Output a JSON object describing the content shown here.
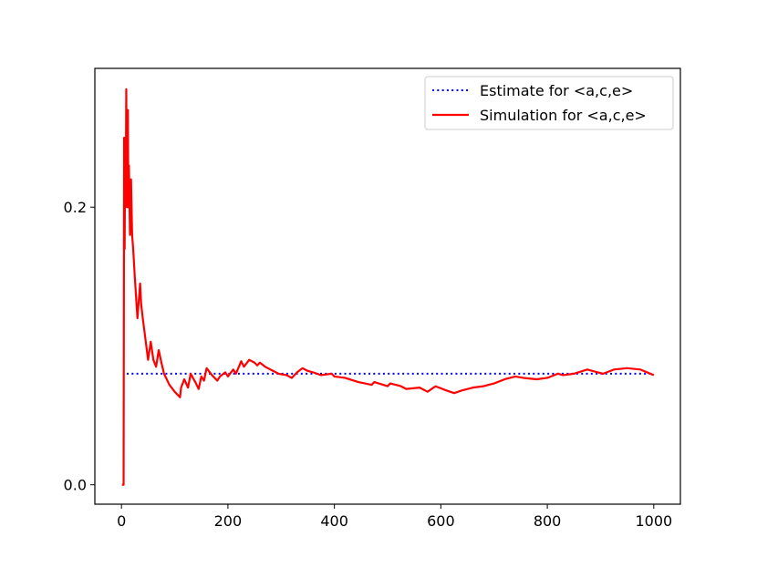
{
  "chart_data": {
    "type": "line",
    "title": "",
    "xlabel": "",
    "ylabel": "",
    "xlim": [
      -50,
      1050
    ],
    "ylim": [
      -0.014,
      0.3
    ],
    "xticks": [
      0,
      200,
      400,
      600,
      800,
      1000
    ],
    "xtick_labels": [
      "0",
      "200",
      "400",
      "600",
      "800",
      "1000"
    ],
    "yticks": [
      0.0,
      0.2
    ],
    "ytick_labels": [
      "0.0",
      "0.2"
    ],
    "grid": false,
    "legend_position": "top-right",
    "series": [
      {
        "name": "Estimate for <a,c,e>",
        "style": "dotted",
        "color": "#0000ff",
        "x": [
          10,
          1000
        ],
        "y": [
          0.08,
          0.08
        ]
      },
      {
        "name": "Simulation for <a,c,e>",
        "style": "solid",
        "color": "#ff0000",
        "x": [
          1,
          4,
          5,
          6,
          7,
          8,
          9,
          10,
          11,
          12,
          13,
          14,
          16,
          18,
          20,
          22,
          25,
          30,
          35,
          37,
          40,
          45,
          50,
          55,
          60,
          65,
          70,
          75,
          80,
          90,
          100,
          110,
          112,
          118,
          125,
          130,
          140,
          145,
          150,
          155,
          160,
          170,
          180,
          185,
          195,
          200,
          210,
          215,
          225,
          230,
          240,
          250,
          255,
          260,
          270,
          285,
          295,
          310,
          320,
          330,
          340,
          350,
          360,
          375,
          395,
          400,
          420,
          445,
          470,
          475,
          500,
          505,
          525,
          535,
          560,
          575,
          590,
          610,
          625,
          640,
          660,
          680,
          700,
          720,
          740,
          755,
          780,
          800,
          820,
          830,
          850,
          875,
          895,
          905,
          925,
          950,
          975,
          1000
        ],
        "y": [
          0.0,
          0.0,
          0.25,
          0.17,
          0.25,
          0.2,
          0.285,
          0.22,
          0.2,
          0.27,
          0.2,
          0.23,
          0.18,
          0.22,
          0.18,
          0.17,
          0.15,
          0.12,
          0.145,
          0.13,
          0.12,
          0.105,
          0.09,
          0.103,
          0.09,
          0.085,
          0.097,
          0.088,
          0.08,
          0.072,
          0.067,
          0.063,
          0.07,
          0.076,
          0.07,
          0.08,
          0.073,
          0.069,
          0.078,
          0.075,
          0.084,
          0.079,
          0.075,
          0.078,
          0.081,
          0.078,
          0.083,
          0.08,
          0.089,
          0.085,
          0.09,
          0.088,
          0.086,
          0.088,
          0.085,
          0.082,
          0.08,
          0.079,
          0.077,
          0.081,
          0.084,
          0.082,
          0.081,
          0.079,
          0.08,
          0.078,
          0.077,
          0.074,
          0.072,
          0.074,
          0.071,
          0.073,
          0.071,
          0.069,
          0.07,
          0.067,
          0.071,
          0.068,
          0.066,
          0.068,
          0.07,
          0.071,
          0.073,
          0.076,
          0.078,
          0.077,
          0.076,
          0.077,
          0.08,
          0.079,
          0.08,
          0.083,
          0.081,
          0.08,
          0.083,
          0.084,
          0.083,
          0.079
        ]
      }
    ]
  }
}
